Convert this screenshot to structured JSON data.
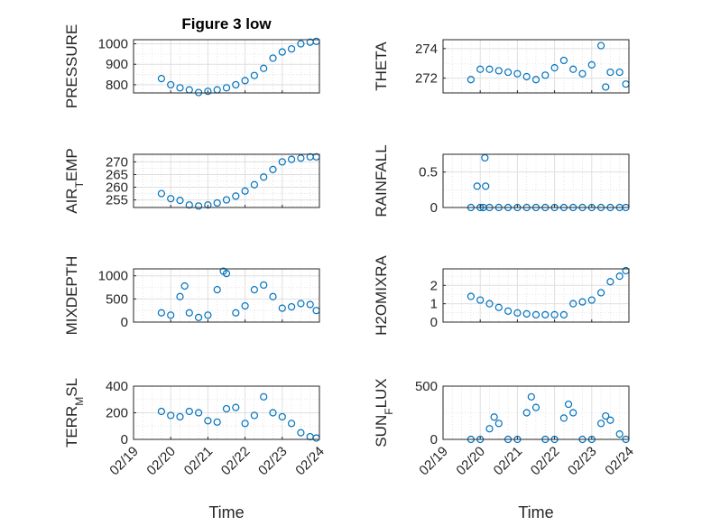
{
  "marker_color": "#0072bd",
  "axis_color": "#262626",
  "grid_color": "#dfdfdf",
  "chart_data": [
    {
      "type": "scatter",
      "title": "Figure 3 low",
      "ylabel": "PRESSURE",
      "ylabel_sub": "",
      "ylabel_suffix": "",
      "xlabel": "",
      "ylim": [
        760,
        1020
      ],
      "yticks": [
        800,
        900,
        1000
      ],
      "xlim": [
        "02/19",
        "02/24"
      ],
      "xticks": [
        "02/19",
        "02/20",
        "02/21",
        "02/22",
        "02/23",
        "02/24"
      ],
      "grid": true,
      "x": [
        "02/19 18:00",
        "02/20 00:00",
        "02/20 06:00",
        "02/20 12:00",
        "02/20 18:00",
        "02/21 00:00",
        "02/21 06:00",
        "02/21 12:00",
        "02/21 18:00",
        "02/22 00:00",
        "02/22 06:00",
        "02/22 12:00",
        "02/22 18:00",
        "02/23 00:00",
        "02/23 06:00",
        "02/23 12:00",
        "02/23 18:00",
        "02/23 22:00"
      ],
      "y": [
        830,
        800,
        785,
        775,
        762,
        768,
        775,
        785,
        800,
        820,
        845,
        880,
        930,
        960,
        975,
        1000,
        1008,
        1012
      ]
    },
    {
      "type": "scatter",
      "title": "",
      "ylabel": "THETA",
      "ylabel_sub": "",
      "ylabel_suffix": "",
      "xlabel": "",
      "ylim": [
        271,
        274.6
      ],
      "yticks": [
        272,
        274
      ],
      "xlim": [
        "02/19",
        "02/24"
      ],
      "xticks": [
        "02/19",
        "02/20",
        "02/21",
        "02/22",
        "02/23",
        "02/24"
      ],
      "grid": true,
      "x": [
        "02/19 18:00",
        "02/20 00:00",
        "02/20 06:00",
        "02/20 12:00",
        "02/20 18:00",
        "02/21 00:00",
        "02/21 06:00",
        "02/21 12:00",
        "02/21 18:00",
        "02/22 00:00",
        "02/22 06:00",
        "02/22 12:00",
        "02/22 18:00",
        "02/23 00:00",
        "02/23 06:00",
        "02/23 09:00",
        "02/23 12:00",
        "02/23 18:00",
        "02/23 22:00"
      ],
      "y": [
        271.9,
        272.6,
        272.6,
        272.5,
        272.4,
        272.3,
        272.1,
        271.9,
        272.2,
        272.7,
        273.2,
        272.6,
        272.3,
        272.9,
        274.2,
        271.4,
        272.4,
        272.4,
        271.6
      ]
    },
    {
      "type": "scatter",
      "title": "",
      "ylabel": "AIR",
      "ylabel_sub": "T",
      "ylabel_suffix": "EMP",
      "xlabel": "",
      "ylim": [
        252,
        273
      ],
      "yticks": [
        255,
        260,
        265,
        270
      ],
      "xlim": [
        "02/19",
        "02/24"
      ],
      "xticks": [
        "02/19",
        "02/20",
        "02/21",
        "02/22",
        "02/23",
        "02/24"
      ],
      "grid": true,
      "x": [
        "02/19 18:00",
        "02/20 00:00",
        "02/20 06:00",
        "02/20 12:00",
        "02/20 18:00",
        "02/21 00:00",
        "02/21 06:00",
        "02/21 12:00",
        "02/21 18:00",
        "02/22 00:00",
        "02/22 06:00",
        "02/22 12:00",
        "02/22 18:00",
        "02/23 00:00",
        "02/23 06:00",
        "02/23 12:00",
        "02/23 18:00",
        "02/23 22:00"
      ],
      "y": [
        257.5,
        255.5,
        254.8,
        253.0,
        252.6,
        253.0,
        253.8,
        255.0,
        256.5,
        258.5,
        261.0,
        264.0,
        267.0,
        270.0,
        271.0,
        271.5,
        272.0,
        272.0
      ]
    },
    {
      "type": "scatter",
      "title": "",
      "ylabel": "RAINFALL",
      "ylabel_sub": "",
      "ylabel_suffix": "",
      "xlabel": "",
      "ylim": [
        0,
        0.75
      ],
      "yticks": [
        0,
        0.5
      ],
      "xlim": [
        "02/19",
        "02/24"
      ],
      "xticks": [
        "02/19",
        "02/20",
        "02/21",
        "02/22",
        "02/23",
        "02/24"
      ],
      "grid": true,
      "x": [
        "02/19 18:00",
        "02/20 00:00",
        "02/20 03:00",
        "02/20 06:00",
        "02/20 12:00",
        "02/20 18:00",
        "02/21 00:00",
        "02/21 06:00",
        "02/21 12:00",
        "02/21 18:00",
        "02/22 00:00",
        "02/22 06:00",
        "02/22 12:00",
        "02/22 18:00",
        "02/23 00:00",
        "02/23 06:00",
        "02/23 12:00",
        "02/23 18:00",
        "02/23 22:00",
        "02/19 22:00",
        "02/20 02:00",
        "02/20 03:30"
      ],
      "y": [
        0,
        0,
        0.7,
        0,
        0,
        0,
        0,
        0,
        0,
        0,
        0,
        0,
        0,
        0,
        0,
        0,
        0,
        0,
        0,
        0.3,
        0,
        0.3
      ]
    },
    {
      "type": "scatter",
      "title": "",
      "ylabel": "MIXDEPTH",
      "ylabel_sub": "",
      "ylabel_suffix": "",
      "xlabel": "",
      "ylim": [
        0,
        1150
      ],
      "yticks": [
        0,
        500,
        1000
      ],
      "xlim": [
        "02/19",
        "02/24"
      ],
      "xticks": [
        "02/19",
        "02/20",
        "02/21",
        "02/22",
        "02/23",
        "02/24"
      ],
      "grid": true,
      "x": [
        "02/19 18:00",
        "02/20 00:00",
        "02/20 06:00",
        "02/20 09:00",
        "02/20 12:00",
        "02/20 18:00",
        "02/21 00:00",
        "02/21 06:00",
        "02/21 10:00",
        "02/21 12:00",
        "02/21 18:00",
        "02/22 00:00",
        "02/22 06:00",
        "02/22 12:00",
        "02/22 18:00",
        "02/23 00:00",
        "02/23 06:00",
        "02/23 12:00",
        "02/23 18:00",
        "02/23 22:00"
      ],
      "y": [
        200,
        150,
        550,
        780,
        200,
        100,
        150,
        700,
        1100,
        1050,
        200,
        350,
        700,
        800,
        550,
        300,
        330,
        400,
        380,
        250
      ]
    },
    {
      "type": "scatter",
      "title": "",
      "ylabel": "H2OMIXRA",
      "ylabel_sub": "",
      "ylabel_suffix": "",
      "xlabel": "",
      "ylim": [
        0,
        2.9
      ],
      "yticks": [
        0,
        1,
        2
      ],
      "xlim": [
        "02/19",
        "02/24"
      ],
      "xticks": [
        "02/19",
        "02/20",
        "02/21",
        "02/22",
        "02/23",
        "02/24"
      ],
      "grid": true,
      "x": [
        "02/19 18:00",
        "02/20 00:00",
        "02/20 06:00",
        "02/20 12:00",
        "02/20 18:00",
        "02/21 00:00",
        "02/21 06:00",
        "02/21 12:00",
        "02/21 18:00",
        "02/22 00:00",
        "02/22 06:00",
        "02/22 12:00",
        "02/22 18:00",
        "02/23 00:00",
        "02/23 06:00",
        "02/23 12:00",
        "02/23 18:00",
        "02/23 22:00"
      ],
      "y": [
        1.4,
        1.2,
        1.0,
        0.8,
        0.6,
        0.5,
        0.45,
        0.4,
        0.4,
        0.4,
        0.4,
        1.0,
        1.1,
        1.2,
        1.6,
        2.2,
        2.5,
        2.8
      ]
    },
    {
      "type": "scatter",
      "title": "",
      "ylabel": "TERR",
      "ylabel_sub": "M",
      "ylabel_suffix": "SL",
      "xlabel": "Time",
      "ylim": [
        0,
        400
      ],
      "yticks": [
        0,
        200,
        400
      ],
      "xlim": [
        "02/19",
        "02/24"
      ],
      "xticks": [
        "02/19",
        "02/20",
        "02/21",
        "02/22",
        "02/23",
        "02/24"
      ],
      "grid": true,
      "x": [
        "02/19 18:00",
        "02/20 00:00",
        "02/20 06:00",
        "02/20 12:00",
        "02/20 18:00",
        "02/21 00:00",
        "02/21 06:00",
        "02/21 12:00",
        "02/21 18:00",
        "02/22 00:00",
        "02/22 06:00",
        "02/22 12:00",
        "02/22 18:00",
        "02/23 00:00",
        "02/23 06:00",
        "02/23 12:00",
        "02/23 18:00",
        "02/23 22:00"
      ],
      "y": [
        210,
        180,
        170,
        210,
        200,
        140,
        130,
        230,
        240,
        120,
        180,
        320,
        200,
        170,
        120,
        50,
        20,
        10
      ]
    },
    {
      "type": "scatter",
      "title": "",
      "ylabel": "SUN",
      "ylabel_sub": "F",
      "ylabel_suffix": "LUX",
      "xlabel": "Time",
      "ylim": [
        0,
        500
      ],
      "yticks": [
        0,
        500
      ],
      "xlim": [
        "02/19",
        "02/24"
      ],
      "xticks": [
        "02/19",
        "02/20",
        "02/21",
        "02/22",
        "02/23",
        "02/24"
      ],
      "grid": true,
      "x": [
        "02/19 18:00",
        "02/20 00:00",
        "02/20 06:00",
        "02/20 09:00",
        "02/20 12:00",
        "02/20 18:00",
        "02/21 00:00",
        "02/21 06:00",
        "02/21 09:00",
        "02/21 12:00",
        "02/21 18:00",
        "02/22 00:00",
        "02/22 06:00",
        "02/22 09:00",
        "02/22 12:00",
        "02/22 18:00",
        "02/23 00:00",
        "02/23 06:00",
        "02/23 09:00",
        "02/23 12:00",
        "02/23 18:00",
        "02/23 22:00"
      ],
      "y": [
        0,
        0,
        100,
        210,
        150,
        0,
        0,
        250,
        400,
        300,
        0,
        0,
        200,
        330,
        250,
        0,
        0,
        150,
        220,
        180,
        50,
        0
      ]
    }
  ]
}
